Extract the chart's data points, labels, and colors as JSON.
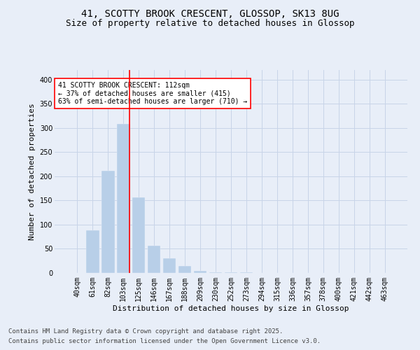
{
  "title1": "41, SCOTTY BROOK CRESCENT, GLOSSOP, SK13 8UG",
  "title2": "Size of property relative to detached houses in Glossop",
  "xlabel": "Distribution of detached houses by size in Glossop",
  "ylabel": "Number of detached properties",
  "categories": [
    "40sqm",
    "61sqm",
    "82sqm",
    "103sqm",
    "125sqm",
    "146sqm",
    "167sqm",
    "188sqm",
    "209sqm",
    "230sqm",
    "252sqm",
    "273sqm",
    "294sqm",
    "315sqm",
    "336sqm",
    "357sqm",
    "378sqm",
    "400sqm",
    "421sqm",
    "442sqm",
    "463sqm"
  ],
  "values": [
    0,
    88,
    212,
    308,
    157,
    57,
    30,
    15,
    5,
    2,
    1,
    1,
    0,
    0,
    0,
    0,
    0,
    0,
    0,
    0,
    0
  ],
  "bar_color": "#b8cfe8",
  "vertical_line_color": "red",
  "vertical_line_x": 3.4,
  "annotation_text": "41 SCOTTY BROOK CRESCENT: 112sqm\n← 37% of detached houses are smaller (415)\n63% of semi-detached houses are larger (710) →",
  "annotation_box_color": "white",
  "annotation_box_edgecolor": "red",
  "ylim": [
    0,
    420
  ],
  "yticks": [
    0,
    50,
    100,
    150,
    200,
    250,
    300,
    350,
    400
  ],
  "footer1": "Contains HM Land Registry data © Crown copyright and database right 2025.",
  "footer2": "Contains public sector information licensed under the Open Government Licence v3.0.",
  "bg_color": "#e8eef8",
  "grid_color": "#c8d4e8",
  "title_fontsize": 10,
  "subtitle_fontsize": 9,
  "axis_label_fontsize": 8,
  "tick_fontsize": 7,
  "annotation_fontsize": 7,
  "footer_fontsize": 6.5
}
